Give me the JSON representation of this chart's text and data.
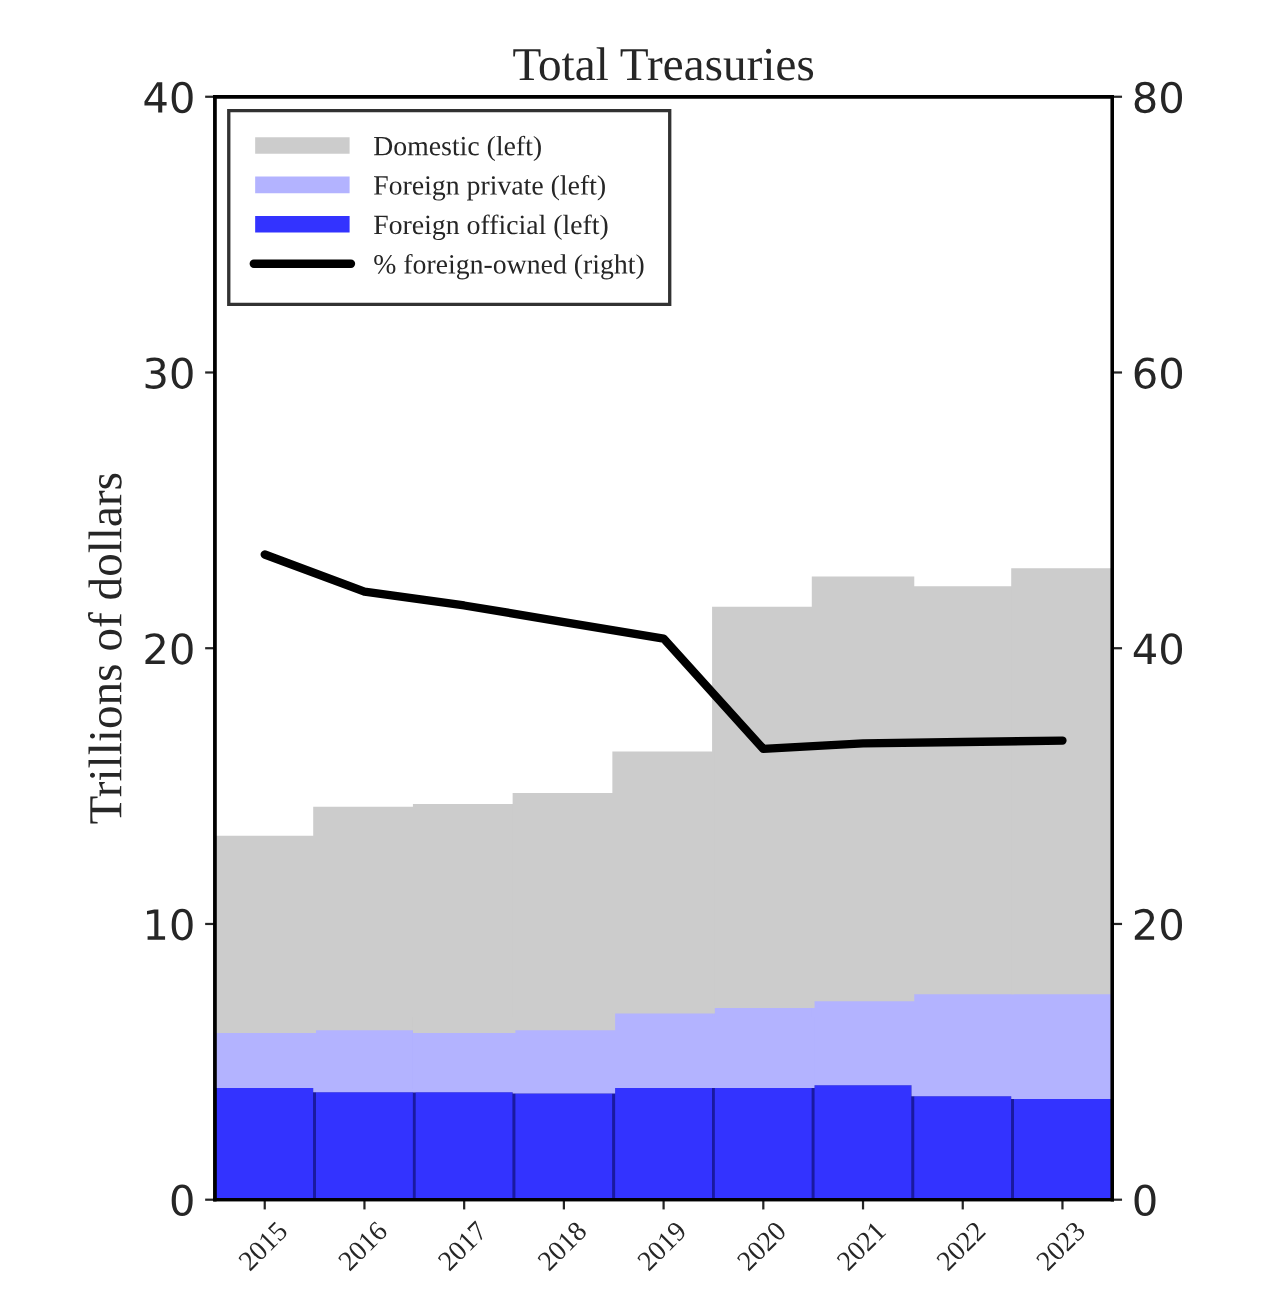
{
  "chart_data": {
    "type": "bar",
    "title": "Total Treasuries",
    "ylabel": "Trillions of dollars",
    "stacked": true,
    "categories": [
      "2015",
      "2016",
      "2017",
      "2018",
      "2019",
      "2020",
      "2021",
      "2022",
      "2023"
    ],
    "series": [
      {
        "name": "Foreign official (left)",
        "color": "#3333ff",
        "values": [
          4.1,
          3.95,
          3.95,
          3.9,
          4.1,
          4.1,
          4.2,
          3.8,
          3.7
        ]
      },
      {
        "name": "Foreign private (left)",
        "color": "#b3b3ff",
        "values": [
          2.0,
          2.25,
          2.15,
          2.3,
          2.7,
          2.9,
          3.05,
          3.7,
          3.8
        ]
      },
      {
        "name": "Domestic (left)",
        "color": "#cccccc",
        "values": [
          7.05,
          8.0,
          8.2,
          8.5,
          9.4,
          14.45,
          15.3,
          14.7,
          15.35
        ]
      },
      {
        "name": "% foreign-owned (right)",
        "type": "line",
        "axis": "y2",
        "color": "#000000",
        "values": [
          46.8,
          44.1,
          43.1,
          41.9,
          40.7,
          32.7,
          33.1,
          33.2,
          33.3
        ]
      }
    ],
    "ylim": [
      0,
      40
    ],
    "yticks": [
      0,
      10,
      20,
      30,
      40
    ],
    "y2lim": [
      0,
      80
    ],
    "y2ticks": [
      0,
      20,
      40,
      60,
      80
    ],
    "legend": "top left",
    "grid": false
  }
}
